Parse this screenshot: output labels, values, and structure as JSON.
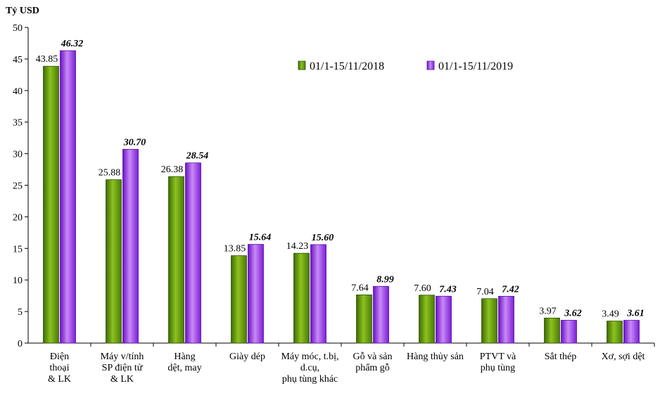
{
  "chart_data": {
    "type": "bar",
    "ylabel": "Tỷ USD",
    "ylim": [
      0,
      50
    ],
    "yticks": [
      0,
      5,
      10,
      15,
      20,
      25,
      30,
      35,
      40,
      45,
      50
    ],
    "grid": false,
    "legend_position": "top-right",
    "categories": [
      [
        "Điện",
        "thoại",
        "& LK"
      ],
      [
        "Máy v/tính",
        "SP điện tử",
        "& LK"
      ],
      [
        "Hàng",
        "dệt, may"
      ],
      [
        "Giày dép"
      ],
      [
        "Máy móc, t.bị,",
        "d.cụ,",
        "phụ tùng khác"
      ],
      [
        "Gỗ và sản",
        "phẩm gỗ"
      ],
      [
        "Hàng thủy sản"
      ],
      [
        "PTVT và",
        "phụ tùng"
      ],
      [
        "Sắt thép"
      ],
      [
        "Xơ, sợi dệt"
      ]
    ],
    "series": [
      {
        "name": "01/1-15/11/2018",
        "color": "#5a8a12",
        "values": [
          43.85,
          25.88,
          26.38,
          13.85,
          14.23,
          7.64,
          7.6,
          7.04,
          3.97,
          3.49
        ],
        "labels": [
          "43.85",
          "25.88",
          "26.38",
          "13.85",
          "14.23",
          "7.64",
          "7.60",
          "7.04",
          "3.97",
          "3.49"
        ]
      },
      {
        "name": "01/1-15/11/2019",
        "color": "#8a2be2",
        "values": [
          46.32,
          30.7,
          28.54,
          15.64,
          15.6,
          8.99,
          7.43,
          7.42,
          3.62,
          3.61
        ],
        "labels": [
          "46.32",
          "30.70",
          "28.54",
          "15.64",
          "15.60",
          "8.99",
          "7.43",
          "7.42",
          "3.62",
          "3.61"
        ]
      }
    ]
  }
}
